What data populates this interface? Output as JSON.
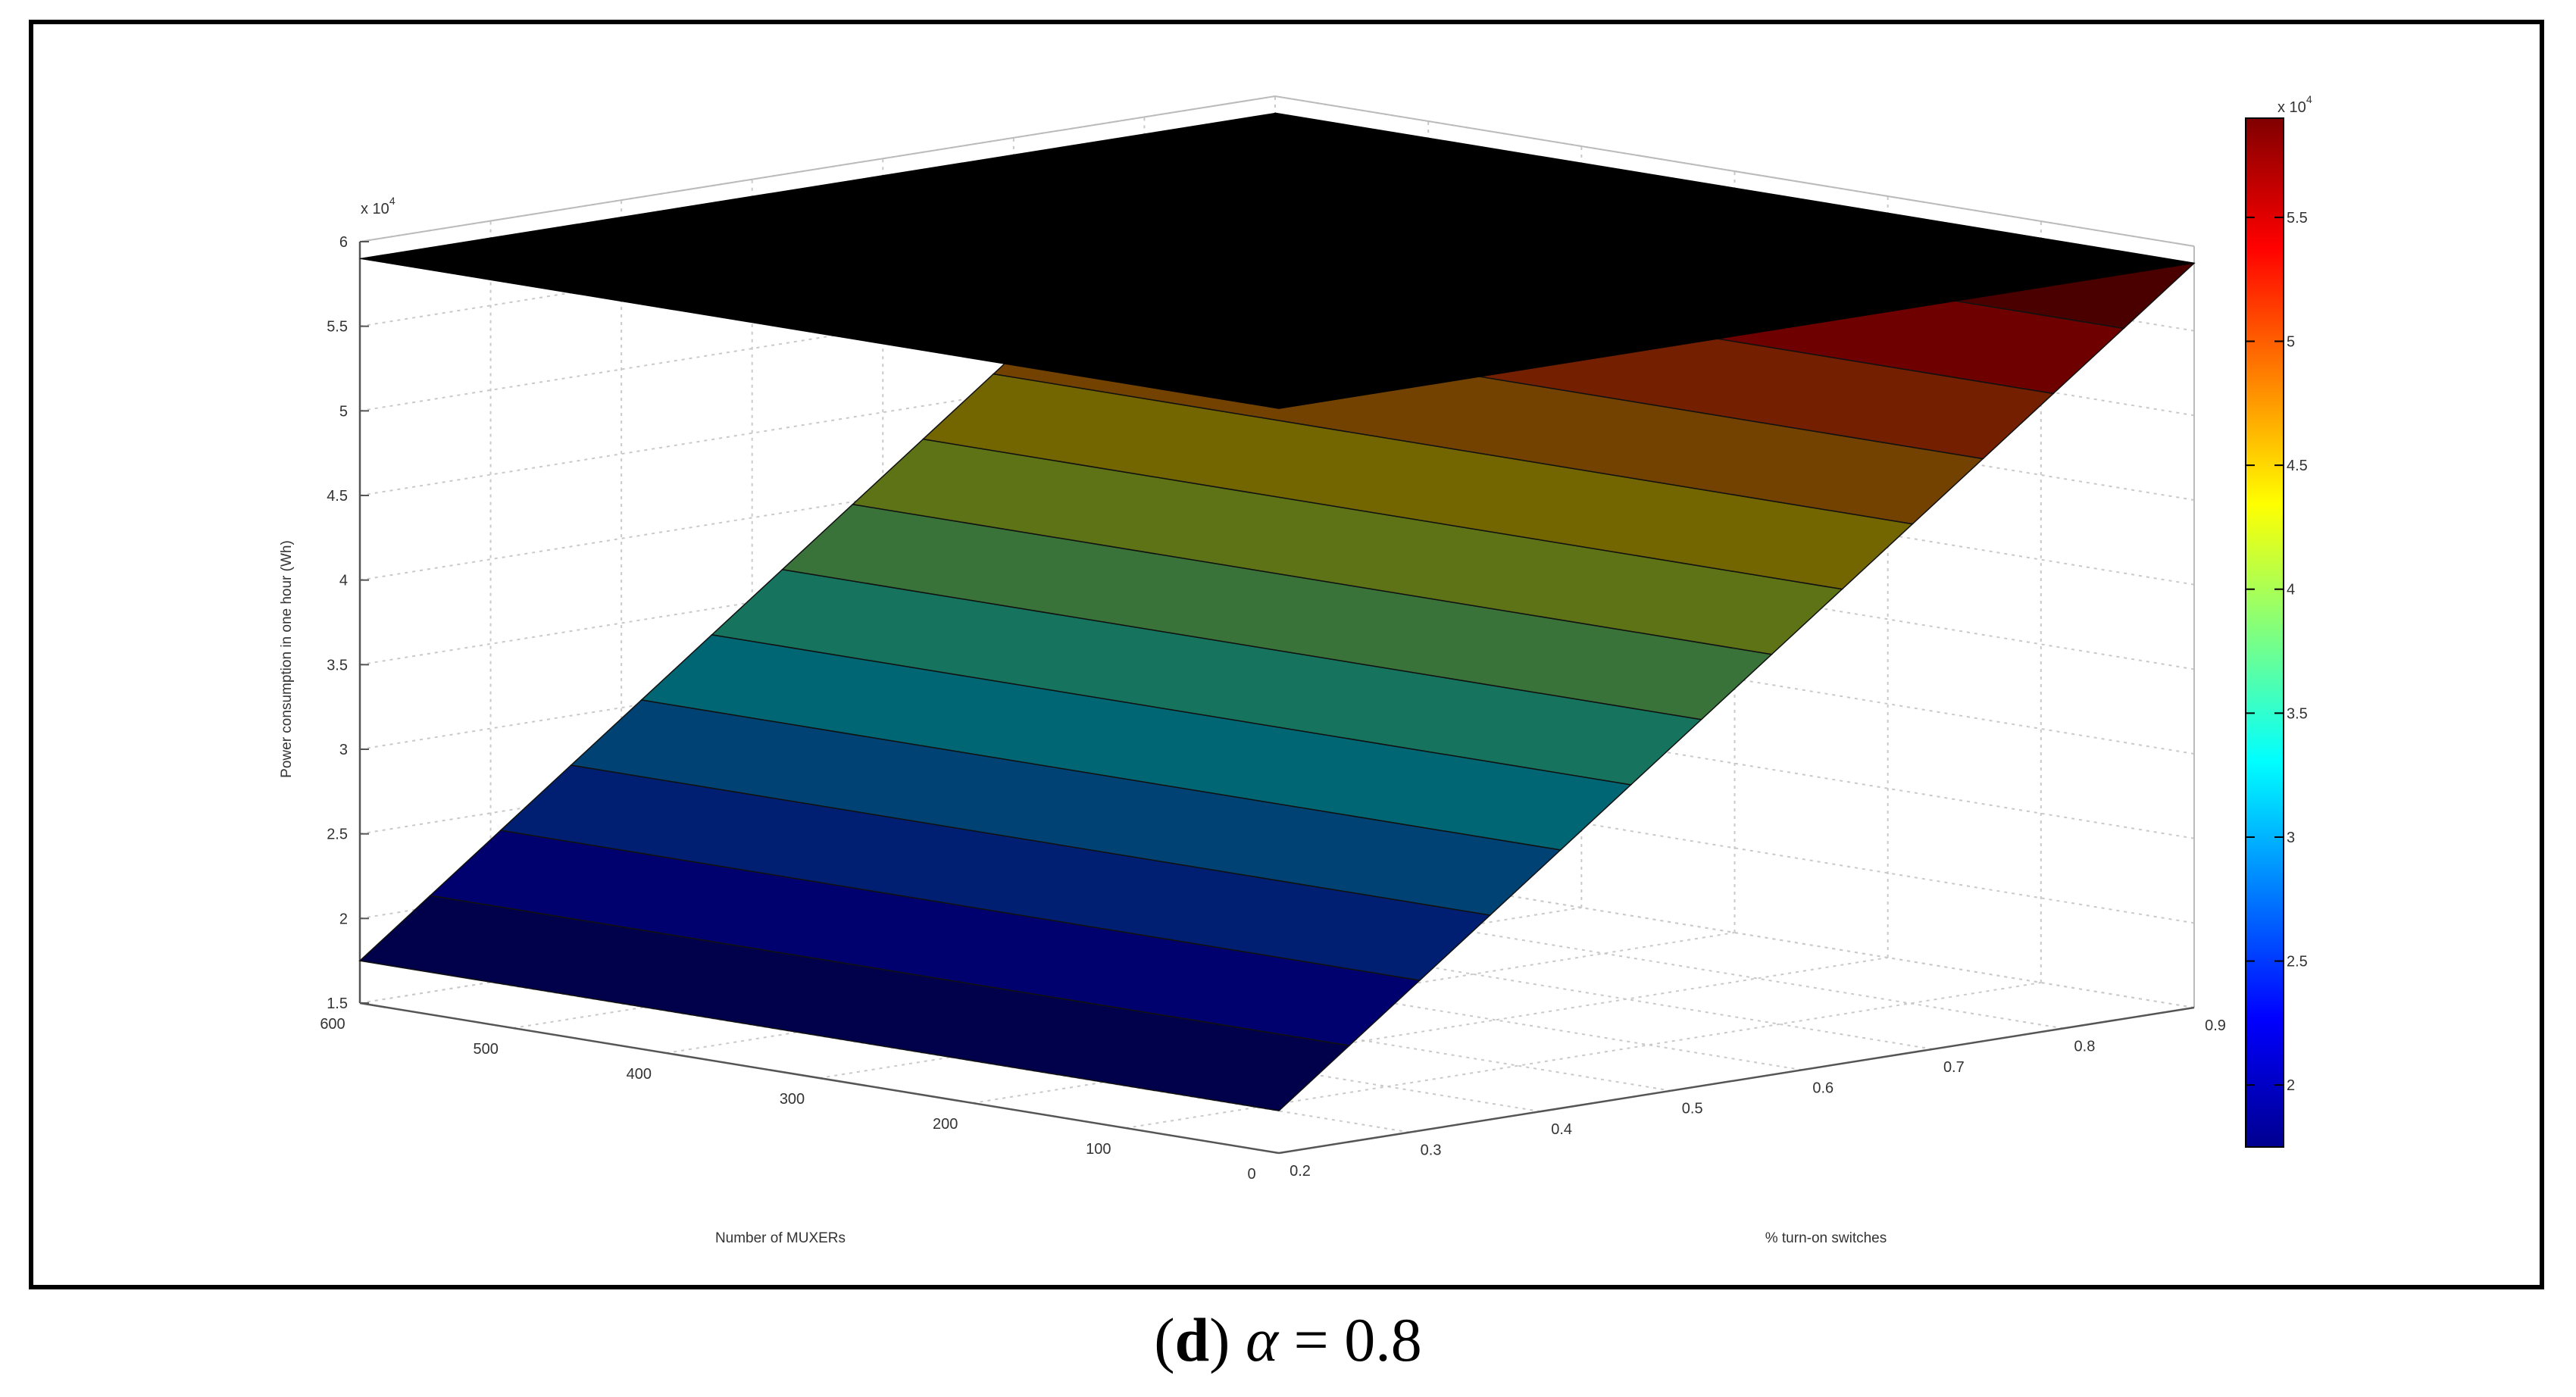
{
  "chart_data": {
    "type": "surface",
    "zlabel": "Power consumption in one hour (Wh)",
    "xlabel": "% turn-on switches",
    "ylabel": "Number of MUXERs",
    "z_multiplier": "x 10",
    "z_multiplier_exp": "4",
    "zlim": [
      15000,
      60000
    ],
    "z_ticks": [
      "1.5",
      "2",
      "2.5",
      "3",
      "3.5",
      "4",
      "4.5",
      "5",
      "5.5",
      "6"
    ],
    "x_ticks": [
      "0.2",
      "0.3",
      "0.4",
      "0.5",
      "0.6",
      "0.7",
      "0.8",
      "0.9"
    ],
    "y_ticks": [
      "0",
      "100",
      "200",
      "300",
      "400",
      "500",
      "600"
    ],
    "grid": true,
    "colormap": "jet",
    "colorbar": {
      "multiplier": "x 10",
      "multiplier_exp": "4",
      "ticks": [
        "2",
        "2.5",
        "3",
        "3.5",
        "4",
        "4.5",
        "5",
        "5.5"
      ],
      "range": [
        17500,
        59000
      ]
    },
    "surfaces": [
      {
        "description_color": "#000000",
        "corners": [
          {
            "x": 0.2,
            "y": 0,
            "z": 59000
          },
          {
            "x": 0.2,
            "y": 600,
            "z": 59000
          },
          {
            "x": 0.9,
            "y": 600,
            "z": 59000
          },
          {
            "x": 0.9,
            "y": 0,
            "z": 59000
          }
        ]
      },
      {
        "colormapped": true,
        "bands": 13,
        "corners": [
          {
            "x": 0.2,
            "y": 0,
            "z": 17500
          },
          {
            "x": 0.2,
            "y": 600,
            "z": 17500
          },
          {
            "x": 0.9,
            "y": 600,
            "z": 59000
          },
          {
            "x": 0.9,
            "y": 0,
            "z": 59000
          }
        ]
      }
    ]
  },
  "caption": {
    "open": "(",
    "letter": "d",
    "close": ")",
    "alpha": "α",
    "equals": " = 0.8"
  }
}
